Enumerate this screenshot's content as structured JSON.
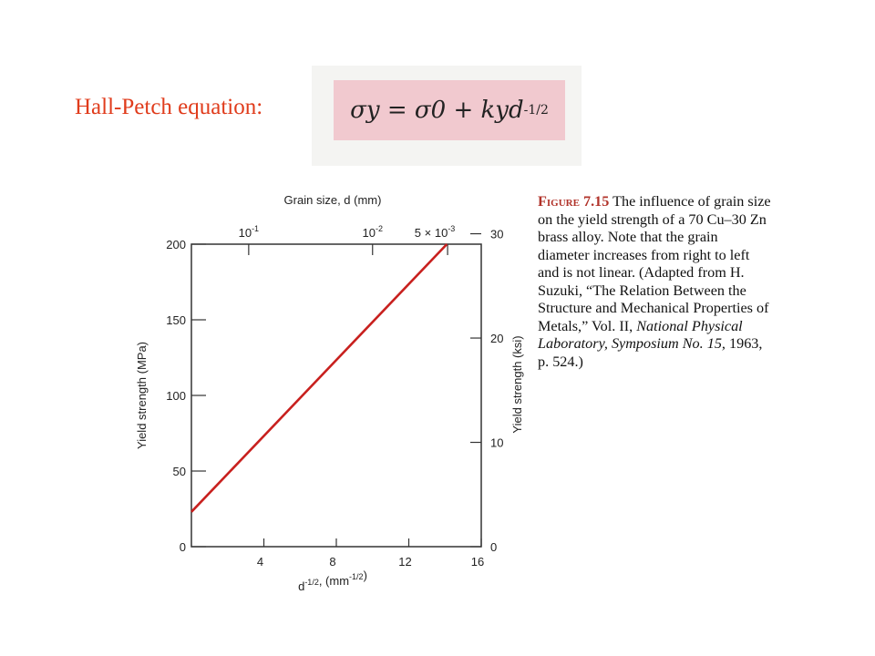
{
  "slide": {
    "heading": "Hall-Petch equation:",
    "equation": {
      "lhs": "σy",
      "rhs_base": "= σ0 + kyd",
      "exponent": "-1/2"
    }
  },
  "caption": {
    "label": "Figure 7.15",
    "text_parts": [
      " The influence of grain size on the yield strength of a 70 Cu–30 Zn brass alloy. Note that the grain diameter increases from right to left and is not linear. (Adapted from H. Suzuki, “The Relation Between the Structure and Mechanical Properties of Metals,” Vol. II, ",
      "National Physical Laboratory, Symposium No. 15,",
      " 1963, p. 524.)"
    ]
  },
  "colors": {
    "line": "#c8201e",
    "heading": "#e03c1c",
    "equation_background": "#f1c9cf",
    "axis": "#333333"
  },
  "chart_data": {
    "type": "line",
    "title": "",
    "xlabel": "d^-1/2, (mm^-1/2)",
    "xlim": [
      0,
      16
    ],
    "x_ticks": [
      4,
      8,
      12,
      16
    ],
    "x_tick_labels": [
      "4",
      "8",
      "12",
      "16"
    ],
    "ylabel": "Yield strength (MPa)",
    "ylim": [
      0,
      200
    ],
    "y_ticks": [
      0,
      50,
      100,
      150,
      200
    ],
    "y_tick_labels": [
      "0",
      "50",
      "100",
      "150",
      "200"
    ],
    "y2label": "Yield strength (ksi)",
    "y2lim": [
      0,
      29
    ],
    "y2_ticks": [
      0,
      10,
      20,
      30
    ],
    "y2_tick_labels": [
      "0",
      "10",
      "20",
      "30"
    ],
    "x2label": "Grain size, d (mm)",
    "x2_ticks": [
      0.1,
      0.01,
      0.005
    ],
    "x2_tick_labels": [
      "10^-1",
      "10^-2",
      "5 × 10^-3"
    ],
    "grid": false,
    "series": [
      {
        "x": [
          0,
          14.5
        ],
        "y": [
          23,
          205
        ]
      }
    ]
  }
}
